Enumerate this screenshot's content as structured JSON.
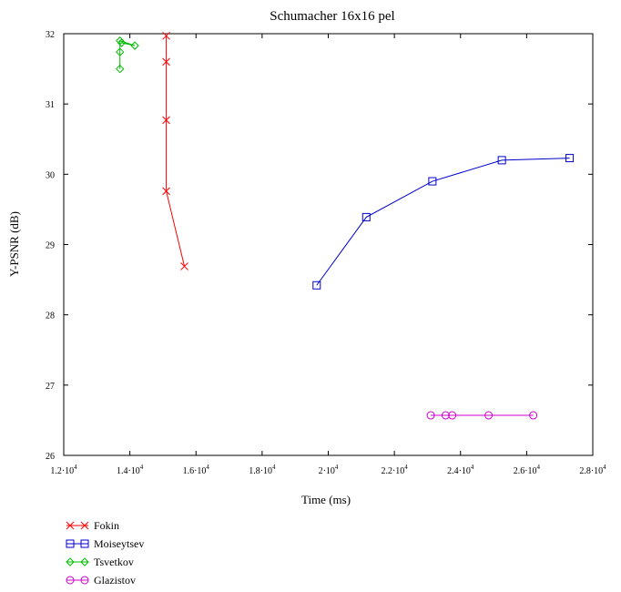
{
  "chart_data": {
    "type": "line",
    "title": "Schumacher 16x16 pel",
    "xlabel": "Time (ms)",
    "ylabel": "Y-PSNR (dB)",
    "xlim": [
      12000,
      28000
    ],
    "ylim": [
      26,
      32
    ],
    "x_ticks": [
      12000,
      14000,
      16000,
      18000,
      20000,
      22000,
      24000,
      26000,
      28000
    ],
    "x_tick_labels": [
      {
        "mant": "1.2·10",
        "exp": "4"
      },
      {
        "mant": "1.4·10",
        "exp": "4"
      },
      {
        "mant": "1.6·10",
        "exp": "4"
      },
      {
        "mant": "1.8·10",
        "exp": "4"
      },
      {
        "mant": "2·10",
        "exp": "4"
      },
      {
        "mant": "2.2·10",
        "exp": "4"
      },
      {
        "mant": "2.4·10",
        "exp": "4"
      },
      {
        "mant": "2.6·10",
        "exp": "4"
      },
      {
        "mant": "2.8·10",
        "exp": "4"
      }
    ],
    "y_ticks": [
      26,
      27,
      28,
      29,
      30,
      31,
      32
    ],
    "y_tick_labels": [
      "26",
      "27",
      "28",
      "29",
      "30",
      "31",
      "32"
    ],
    "grid": false,
    "legend_position": "below-left",
    "series": [
      {
        "name": "Fokin",
        "color": "#ff0000",
        "marker": "x",
        "points": [
          [
            15100,
            31.97
          ],
          [
            15100,
            31.6
          ],
          [
            15100,
            30.77
          ],
          [
            15100,
            29.76
          ],
          [
            15650,
            28.69
          ]
        ]
      },
      {
        "name": "Moiseytsev",
        "color": "#0000cc",
        "marker": "square",
        "points": [
          [
            19650,
            28.42
          ],
          [
            21150,
            29.39
          ],
          [
            23150,
            29.9
          ],
          [
            25250,
            30.2
          ],
          [
            27300,
            30.23
          ]
        ]
      },
      {
        "name": "Tsvetkov",
        "color": "#00bb00",
        "marker": "diamond",
        "points": [
          [
            13700,
            31.5
          ],
          [
            13700,
            31.74
          ],
          [
            13700,
            31.9
          ],
          [
            14150,
            31.83
          ],
          [
            13750,
            31.87
          ]
        ]
      },
      {
        "name": "Glazistov",
        "color": "#cc00cc",
        "marker": "circle",
        "points": [
          [
            23100,
            26.57
          ],
          [
            23550,
            26.57
          ],
          [
            23750,
            26.57
          ],
          [
            24850,
            26.57
          ],
          [
            26200,
            26.57
          ]
        ]
      }
    ]
  }
}
